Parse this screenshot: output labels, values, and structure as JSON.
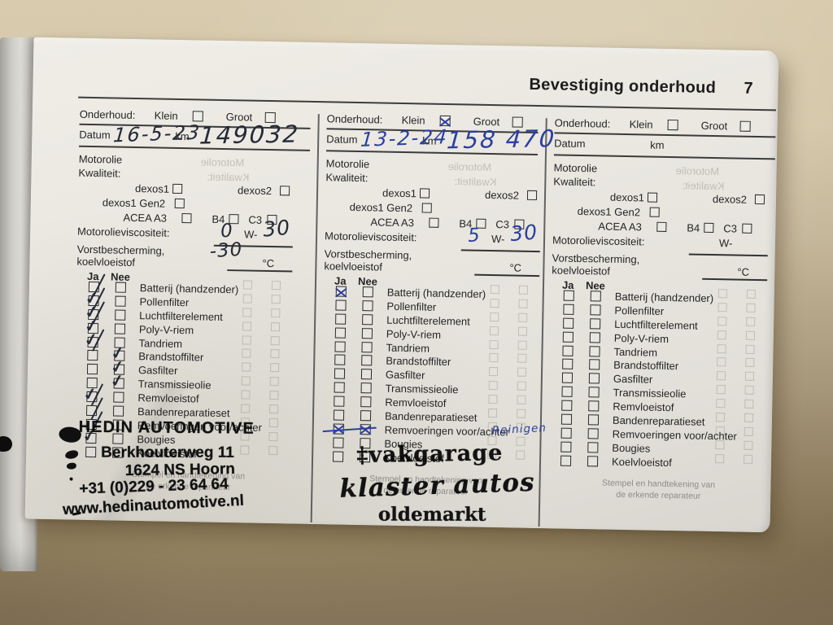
{
  "header": {
    "title": "Bevestiging onderhoud",
    "page_number": "7"
  },
  "labels": {
    "onderhoud": "Onderhoud:",
    "klein": "Klein",
    "groot": "Groot",
    "datum": "Datum",
    "km": "km",
    "motorolie": "Motorolie",
    "kwaliteit": "Kwaliteit:",
    "dexos1": "dexos1",
    "dexos2": "dexos2",
    "dexos1_gen2": "dexos1 Gen2",
    "acea_a3": "ACEA A3",
    "b4": "B4",
    "c3": "C3",
    "viscositeit": "Motorolieviscositeit:",
    "w_prefix": "W-",
    "vorstbescherming": "Vorstbescherming,",
    "koelvloeistof": "koelvloeistof",
    "celsius": "°C",
    "ja": "Ja",
    "nee": "Nee",
    "stempel_line1": "Stempel en handtekening van",
    "stempel_line2": "de erkende reparateur"
  },
  "checklist_items": [
    "Batterij (handzender)",
    "Pollenfilter",
    "Luchtfilterelement",
    "Poly-V-riem",
    "Tandriem",
    "Brandstoffilter",
    "Gasfilter",
    "Transmissieolie",
    "Remvloeistof",
    "Bandenreparatieset",
    "Remvoeringen voor/achter",
    "Bougies",
    "Koelvloeistof"
  ],
  "columns": [
    {
      "name": "service-entry-1",
      "ink": "#262a38",
      "klein_mark": "",
      "groot_mark": "",
      "datum_value": "16-5-23",
      "km_value": "149032",
      "visc_prefix": "0",
      "visc_suffix": "30",
      "temp_value": "-30",
      "checks": {
        "0": {
          "ja": "slash"
        },
        "1": {
          "ja": "check-slash"
        },
        "2": {
          "ja": "check-slash"
        },
        "3": {
          "ja": "check"
        },
        "4": {
          "ja": "check-slash"
        },
        "5": {
          "nee": "check"
        },
        "6": {
          "nee": "check"
        },
        "7": {
          "nee": "check"
        },
        "8": {
          "ja": "check-slash"
        },
        "9": {
          "ja": "slash"
        },
        "10": {
          "ja": "slash"
        },
        "11": {
          "ja": "check"
        }
      },
      "stamp": {
        "style": "hedin",
        "lines": [
          "HEDIN AUTOMOTIVE",
          "Berkhouterweg 11",
          "1624 NS Hoorn",
          "+31 (0)229 - 23 64 64",
          "www.hedinautomotive.nl"
        ]
      }
    },
    {
      "name": "service-entry-2",
      "ink": "#2c3f9e",
      "klein_mark": "x",
      "groot_mark": "",
      "datum_value": "13-2-24",
      "km_value": "158 470",
      "visc_prefix": "5",
      "visc_suffix": "30",
      "temp_value": "",
      "checks": {
        "0": {
          "ja": "x"
        },
        "10": {
          "ja": "x",
          "nee": "x",
          "strike": true,
          "note": "Reinigen"
        }
      },
      "stamp": {
        "style": "klaster",
        "lines": [
          "‡vakgarage",
          "klaster autos",
          "oldemarkt"
        ]
      }
    },
    {
      "name": "service-entry-3",
      "ink": "#262a38",
      "klein_mark": "",
      "groot_mark": "",
      "datum_value": "",
      "km_value": "",
      "visc_prefix": "",
      "visc_suffix": "",
      "temp_value": "",
      "checks": {},
      "stamp": null
    }
  ]
}
